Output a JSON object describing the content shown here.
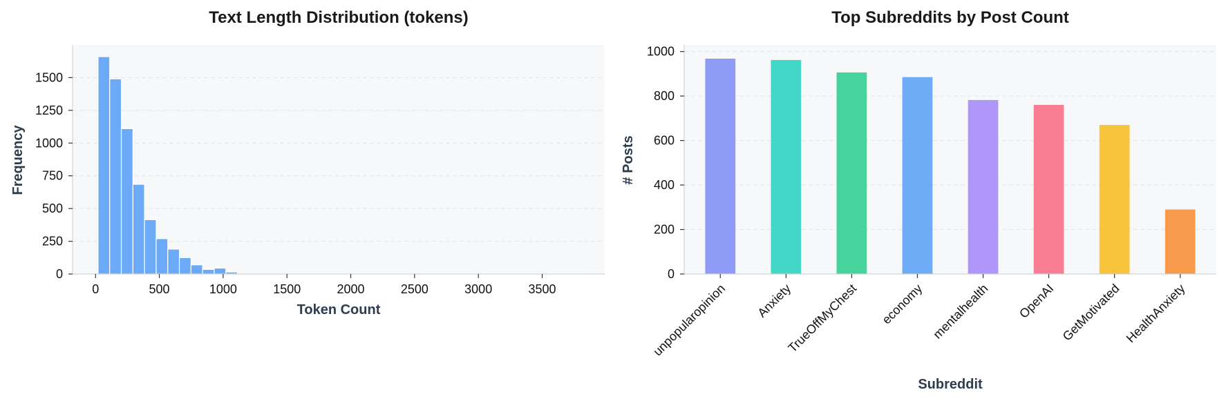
{
  "chart_data": [
    {
      "type": "bar",
      "title": "Text Length Distribution (tokens)",
      "xlabel": "Token Count",
      "ylabel": "Frequency",
      "bar_color": "#6aaaf7",
      "bin_width": 91,
      "bin_starts": [
        20,
        111,
        202,
        293,
        384,
        475,
        566,
        657,
        748,
        839,
        930,
        1021,
        1112,
        1203,
        1294,
        1385,
        1476,
        1567,
        1658,
        1749,
        1840,
        1931,
        2022,
        2113,
        2204,
        2295,
        2386,
        2477,
        2568,
        2659,
        2750,
        2841,
        2932,
        3023,
        3114,
        3205,
        3296,
        3387,
        3478,
        3569,
        3660,
        3751
      ],
      "values": [
        1660,
        1490,
        1110,
        685,
        415,
        270,
        190,
        125,
        70,
        35,
        45,
        15,
        5,
        3,
        2,
        2,
        1,
        1,
        1,
        1,
        1,
        1,
        1,
        1,
        1,
        1,
        1,
        1,
        1,
        1,
        1,
        1,
        1,
        1,
        1,
        1,
        1,
        1,
        1,
        1,
        1,
        1
      ],
      "xticks": [
        0,
        500,
        1000,
        1500,
        2000,
        2500,
        3000,
        3500
      ],
      "yticks": [
        0,
        250,
        500,
        750,
        1000,
        1250,
        1500
      ],
      "xlim": [
        -180,
        3990
      ],
      "ylim": [
        0,
        1750
      ],
      "grid": "horizontal"
    },
    {
      "type": "bar",
      "title": "Top Subreddits by Post Count",
      "xlabel": "Subreddit",
      "ylabel": "# Posts",
      "categories": [
        "unpopularopinion",
        "Anxiety",
        "TrueOffMyChest",
        "economy",
        "mentalhealth",
        "OpenAI",
        "GetMotivated",
        "HealthAnxiety"
      ],
      "values": [
        968,
        962,
        906,
        885,
        782,
        760,
        670,
        290
      ],
      "colors": [
        "#8f9cf7",
        "#42d7c6",
        "#47d49c",
        "#6eacf8",
        "#af96f8",
        "#f97e94",
        "#f8c43b",
        "#f89b4c"
      ],
      "yticks": [
        0,
        200,
        400,
        600,
        800,
        1000
      ],
      "ylim": [
        0,
        1030
      ],
      "grid": "horizontal"
    }
  ]
}
